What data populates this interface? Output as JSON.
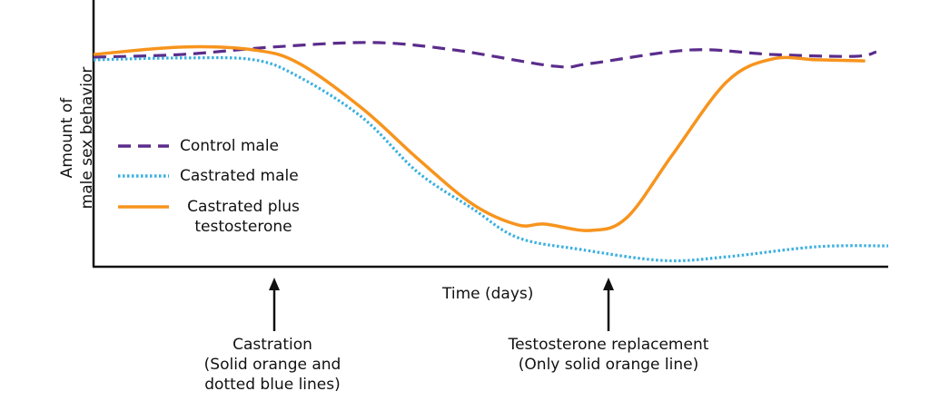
{
  "chart_data": {
    "type": "line",
    "ylabel_lines": [
      "Amount of",
      "male sex behavior"
    ],
    "xlabel": "Time (days)",
    "xlim": [
      0,
      100
    ],
    "ylim": [
      0,
      100
    ],
    "series": [
      {
        "name": "Control male",
        "color": "#5b2c8c",
        "style": "dashed",
        "x": [
          0,
          11.1,
          22.5,
          35.1,
          45.4,
          58,
          62.5,
          75.1,
          85.4,
          95.7,
          98.5
        ],
        "values": [
          78.5,
          79.5,
          82.3,
          84,
          81.2,
          75.1,
          76.1,
          81.2,
          79.5,
          78.8,
          80.5
        ]
      },
      {
        "name": "Castrated male",
        "color": "#3bb0df",
        "style": "dotted",
        "x": [
          0,
          11.1,
          20.2,
          25.9,
          33.9,
          40.8,
          47.7,
          53.4,
          61.4,
          71.7,
          79.7,
          91.1,
          100
        ],
        "values": [
          77.5,
          78.2,
          77.5,
          71,
          55.6,
          35.2,
          21.5,
          10.6,
          6.1,
          2,
          3.4,
          7.2,
          7.5
        ]
      },
      {
        "name": "Castrated plus testosterone",
        "color": "#f7941d",
        "style": "solid",
        "x": [
          0,
          11.1,
          20.2,
          25.9,
          33.9,
          40.8,
          47.7,
          53.4,
          56.8,
          62.5,
          67.1,
          72.9,
          79.7,
          85.4,
          91.1,
          97.1
        ],
        "values": [
          79.5,
          82.3,
          81.2,
          76.1,
          59,
          40.3,
          23.2,
          15.4,
          15.7,
          13.3,
          18.1,
          42,
          69.3,
          77.8,
          77.5,
          77.1
        ]
      }
    ],
    "annotations": [
      {
        "lines": [
          "Castration",
          "(Solid orange and",
          "dotted blue lines)"
        ]
      },
      {
        "lines": [
          "Testosterone replacement",
          "(Only solid orange line)"
        ]
      }
    ]
  }
}
